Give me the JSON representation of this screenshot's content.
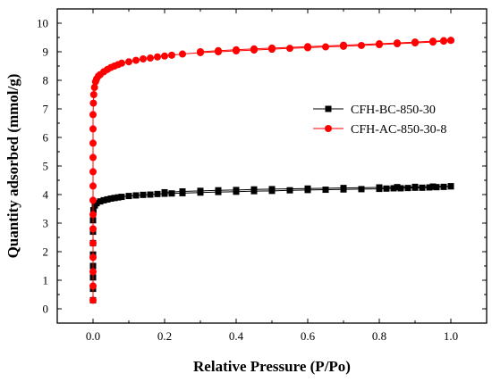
{
  "chart_data": {
    "type": "scatter",
    "title": "",
    "xlabel": "Relative Pressure (P/Po)",
    "ylabel": "Quantity adsorbed (mmol/g)",
    "xlim": [
      -0.1,
      1.1
    ],
    "ylim": [
      -0.5,
      10.5
    ],
    "xticks": [
      "0.0",
      "0.2",
      "0.4",
      "0.6",
      "0.8",
      "1.0"
    ],
    "yticks": [
      "0",
      "1",
      "2",
      "3",
      "4",
      "5",
      "6",
      "7",
      "8",
      "9",
      "10"
    ],
    "grid": false,
    "legend_position": "right",
    "series": [
      {
        "name": "CFH-BC-850-30",
        "color": "#000000",
        "marker": "square",
        "adsorption": [
          [
            0.0,
            0.3
          ],
          [
            0.0,
            0.7
          ],
          [
            0.0,
            1.1
          ],
          [
            0.0,
            1.5
          ],
          [
            0.0,
            1.9
          ],
          [
            0.0,
            2.3
          ],
          [
            0.0,
            2.7
          ],
          [
            0.0,
            3.1
          ],
          [
            0.001,
            3.45
          ],
          [
            0.005,
            3.62
          ],
          [
            0.01,
            3.7
          ],
          [
            0.02,
            3.76
          ],
          [
            0.03,
            3.8
          ],
          [
            0.04,
            3.83
          ],
          [
            0.05,
            3.86
          ],
          [
            0.06,
            3.88
          ],
          [
            0.07,
            3.9
          ],
          [
            0.08,
            3.92
          ],
          [
            0.1,
            3.95
          ],
          [
            0.12,
            3.97
          ],
          [
            0.14,
            3.99
          ],
          [
            0.16,
            4.0
          ],
          [
            0.18,
            4.02
          ],
          [
            0.2,
            4.03
          ],
          [
            0.22,
            4.04
          ],
          [
            0.25,
            4.05
          ],
          [
            0.3,
            4.07
          ],
          [
            0.35,
            4.09
          ],
          [
            0.4,
            4.1
          ],
          [
            0.45,
            4.12
          ],
          [
            0.5,
            4.13
          ],
          [
            0.55,
            4.15
          ],
          [
            0.6,
            4.16
          ],
          [
            0.65,
            4.17
          ],
          [
            0.7,
            4.18
          ],
          [
            0.75,
            4.19
          ],
          [
            0.8,
            4.2
          ],
          [
            0.82,
            4.21
          ],
          [
            0.84,
            4.22
          ],
          [
            0.86,
            4.22
          ],
          [
            0.88,
            4.23
          ],
          [
            0.9,
            4.24
          ],
          [
            0.92,
            4.24
          ],
          [
            0.94,
            4.25
          ],
          [
            0.96,
            4.26
          ],
          [
            0.98,
            4.27
          ],
          [
            1.0,
            4.29
          ]
        ],
        "desorption": [
          [
            1.0,
            4.29
          ],
          [
            0.95,
            4.28
          ],
          [
            0.9,
            4.27
          ],
          [
            0.85,
            4.26
          ],
          [
            0.8,
            4.25
          ],
          [
            0.7,
            4.23
          ],
          [
            0.6,
            4.21
          ],
          [
            0.5,
            4.19
          ],
          [
            0.45,
            4.18
          ],
          [
            0.4,
            4.16
          ],
          [
            0.35,
            4.15
          ],
          [
            0.3,
            4.13
          ],
          [
            0.25,
            4.11
          ],
          [
            0.2,
            4.08
          ]
        ]
      },
      {
        "name": "CFH-AC-850-30-8",
        "color": "#ff0000",
        "marker": "circle",
        "adsorption": [
          [
            0.0,
            0.3
          ],
          [
            0.0,
            0.8
          ],
          [
            0.0,
            1.3
          ],
          [
            0.0,
            1.8
          ],
          [
            0.0,
            2.3
          ],
          [
            0.0,
            2.8
          ],
          [
            0.0,
            3.3
          ],
          [
            0.0,
            3.8
          ],
          [
            0.0,
            4.3
          ],
          [
            0.0,
            4.8
          ],
          [
            0.0,
            5.3
          ],
          [
            0.0,
            5.8
          ],
          [
            0.0,
            6.3
          ],
          [
            0.0,
            6.8
          ],
          [
            0.001,
            7.2
          ],
          [
            0.002,
            7.5
          ],
          [
            0.004,
            7.75
          ],
          [
            0.007,
            7.95
          ],
          [
            0.01,
            8.05
          ],
          [
            0.015,
            8.15
          ],
          [
            0.02,
            8.2
          ],
          [
            0.03,
            8.3
          ],
          [
            0.04,
            8.38
          ],
          [
            0.05,
            8.45
          ],
          [
            0.06,
            8.5
          ],
          [
            0.07,
            8.55
          ],
          [
            0.08,
            8.6
          ],
          [
            0.1,
            8.65
          ],
          [
            0.12,
            8.7
          ],
          [
            0.14,
            8.75
          ],
          [
            0.16,
            8.78
          ],
          [
            0.18,
            8.82
          ],
          [
            0.2,
            8.85
          ],
          [
            0.22,
            8.88
          ],
          [
            0.25,
            8.92
          ],
          [
            0.3,
            8.97
          ],
          [
            0.35,
            9.0
          ],
          [
            0.4,
            9.03
          ],
          [
            0.45,
            9.06
          ],
          [
            0.5,
            9.09
          ],
          [
            0.55,
            9.12
          ],
          [
            0.6,
            9.14
          ],
          [
            0.65,
            9.17
          ],
          [
            0.7,
            9.19
          ],
          [
            0.75,
            9.22
          ],
          [
            0.8,
            9.25
          ],
          [
            0.85,
            9.28
          ],
          [
            0.9,
            9.31
          ],
          [
            0.95,
            9.34
          ],
          [
            0.98,
            9.37
          ],
          [
            1.0,
            9.4
          ]
        ],
        "desorption": [
          [
            1.0,
            9.4
          ],
          [
            0.98,
            9.39
          ],
          [
            0.95,
            9.37
          ],
          [
            0.9,
            9.34
          ],
          [
            0.85,
            9.31
          ],
          [
            0.8,
            9.28
          ],
          [
            0.7,
            9.23
          ],
          [
            0.6,
            9.18
          ],
          [
            0.5,
            9.13
          ],
          [
            0.45,
            9.1
          ],
          [
            0.4,
            9.07
          ],
          [
            0.35,
            9.04
          ],
          [
            0.3,
            9.0
          ]
        ]
      }
    ]
  }
}
